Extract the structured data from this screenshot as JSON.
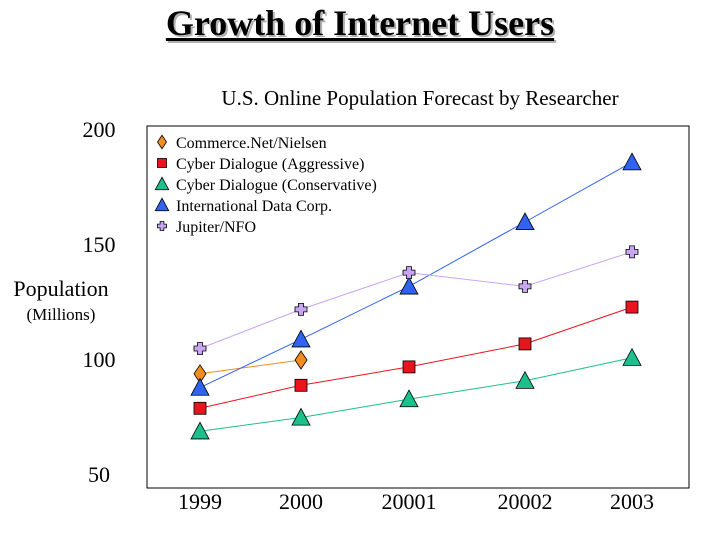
{
  "slide": {
    "title": "Growth of Internet Users"
  },
  "chart_data": {
    "type": "line",
    "title": "U.S. Online Population Forecast by Researcher",
    "ylabel": "Population",
    "yunit": "(Millions)",
    "xlabel": "",
    "categories": [
      "1999",
      "2000",
      "20001",
      "20002",
      "2003"
    ],
    "y_ticks": [
      50,
      100,
      150,
      200
    ],
    "ylim": [
      50,
      200
    ],
    "grid": false,
    "legend_position": "top-left",
    "series": [
      {
        "name": "Commerce.Net/Nielsen",
        "marker": "diamond",
        "color": "#f28c1e",
        "values": [
          94,
          100,
          null,
          null,
          null
        ]
      },
      {
        "name": "Cyber Dialogue (Aggressive)",
        "marker": "square",
        "color": "#e8141e",
        "values": [
          79,
          89,
          97,
          107,
          123
        ]
      },
      {
        "name": "Cyber Dialogue (Conservative)",
        "marker": "triangle",
        "color": "#1cc08a",
        "values": [
          69,
          75,
          83,
          91,
          101
        ]
      },
      {
        "name": "International Data Corp.",
        "marker": "triangle",
        "color": "#2f63f0",
        "values": [
          88,
          109,
          132,
          160,
          186
        ]
      },
      {
        "name": "Jupiter/NFO",
        "marker": "plus",
        "color": "#c9a6f2",
        "values": [
          105,
          122,
          138,
          132,
          147
        ]
      }
    ]
  }
}
